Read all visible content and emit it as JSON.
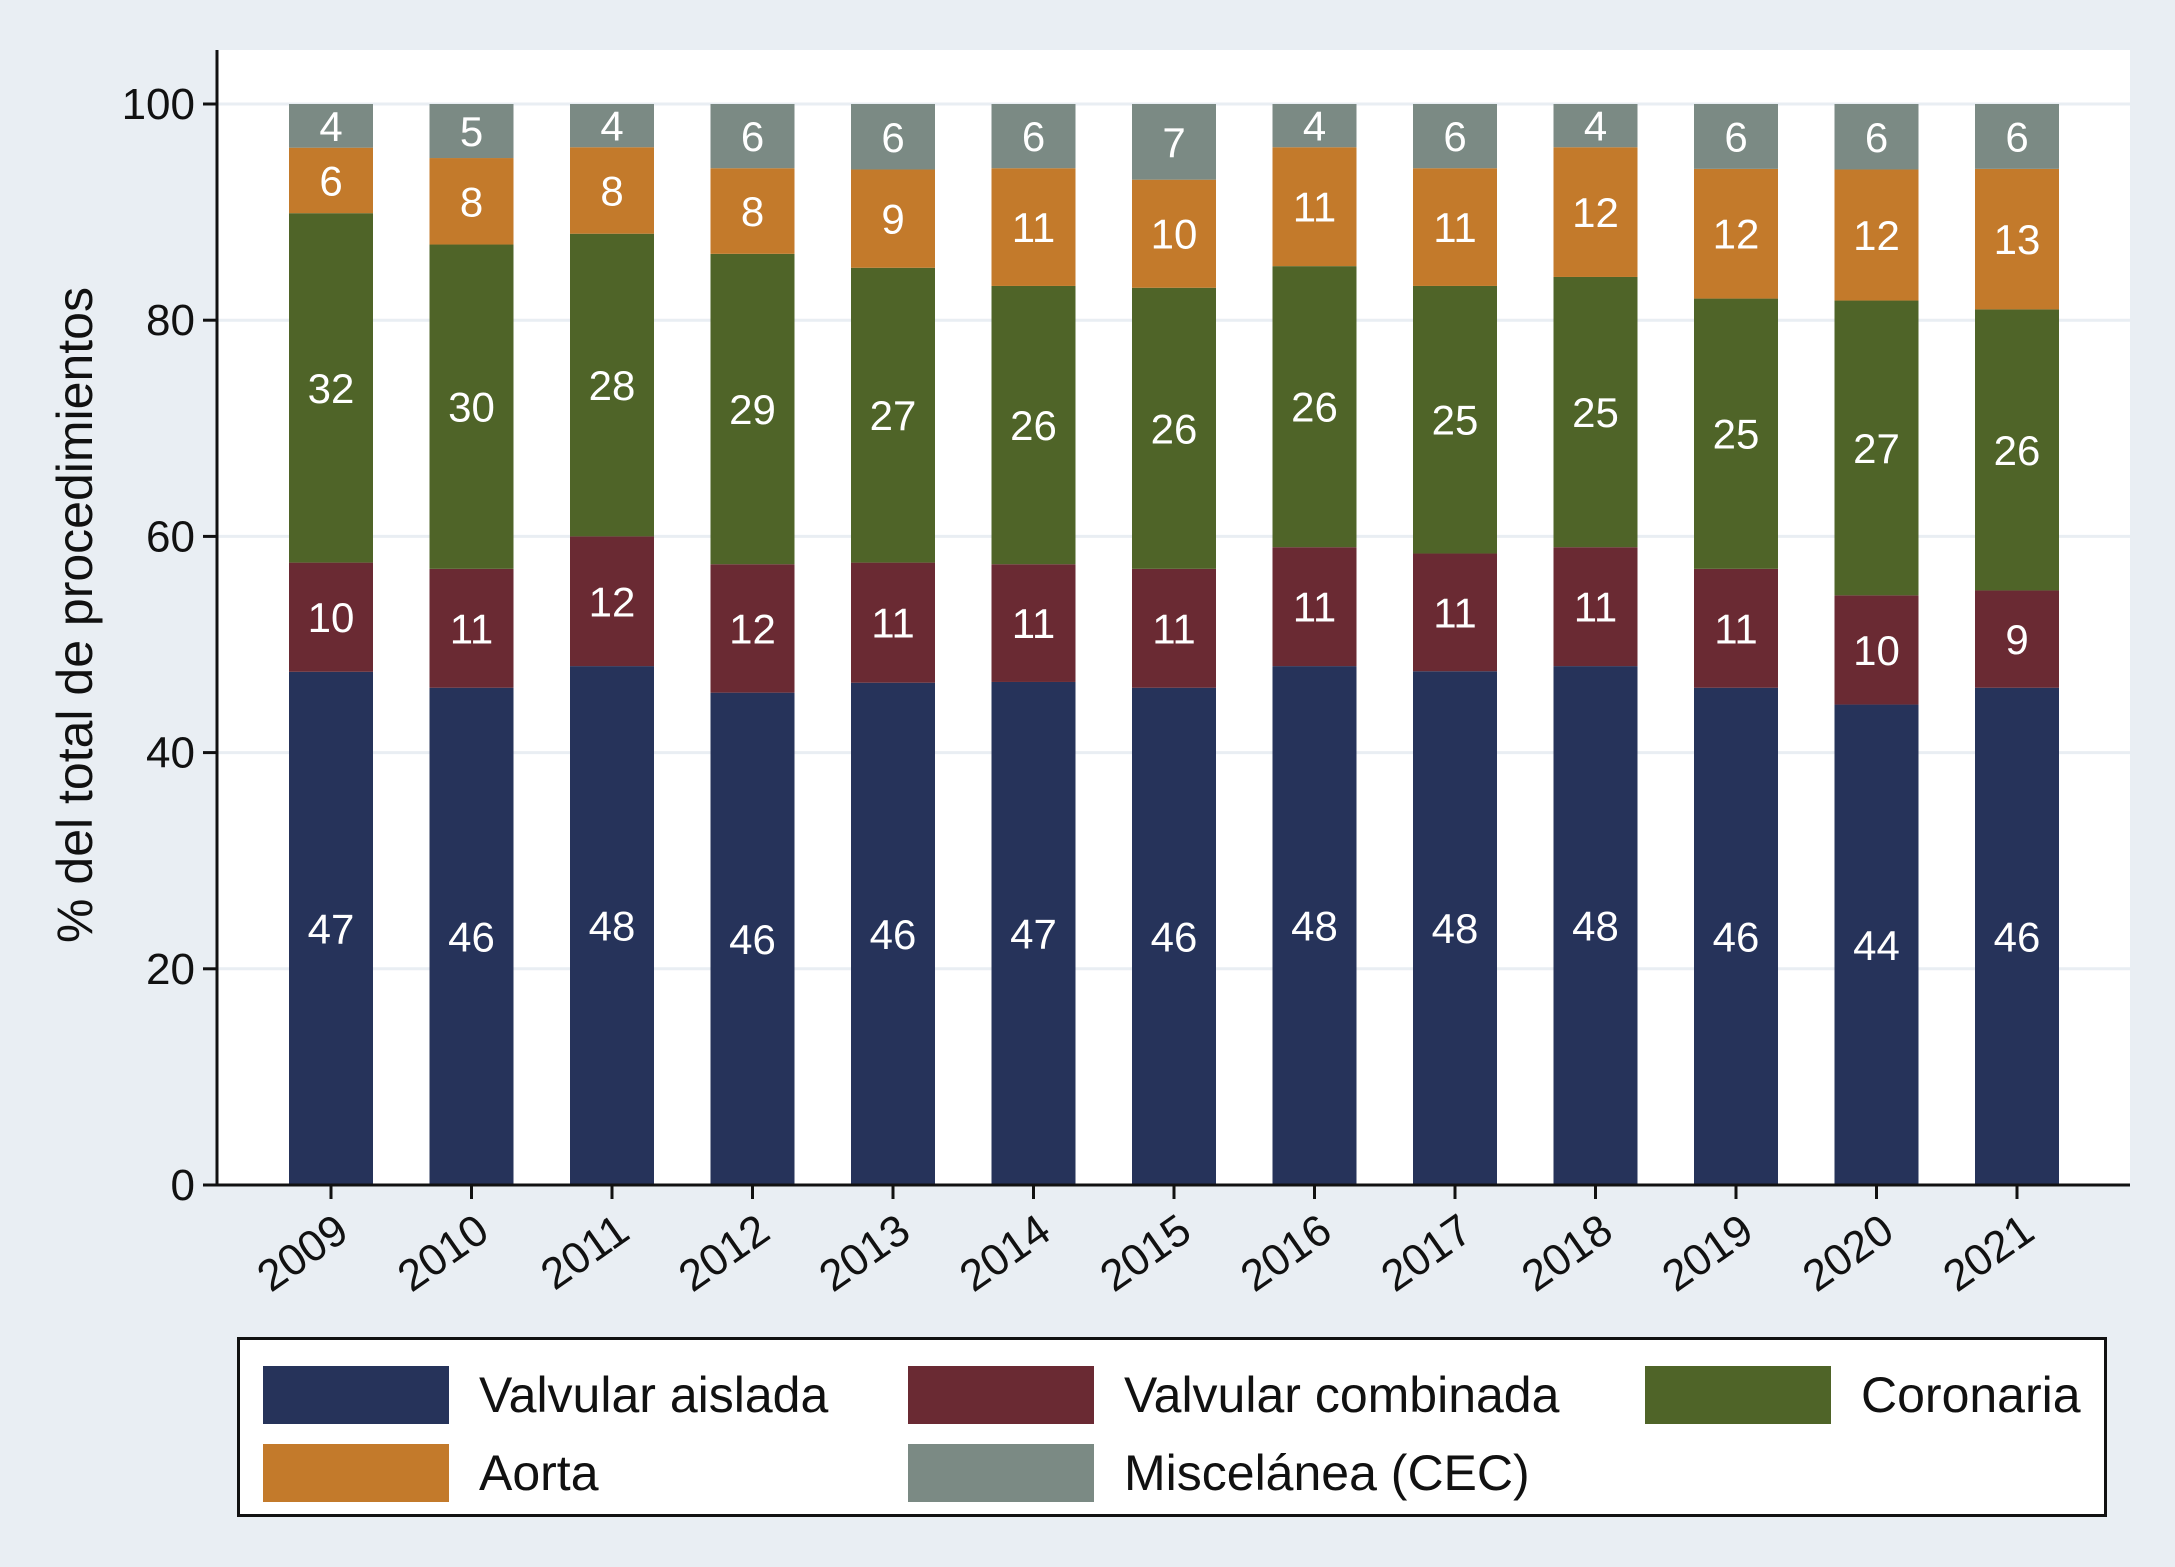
{
  "chart_data": {
    "type": "bar",
    "stacked": true,
    "categories": [
      "2009",
      "2010",
      "2011",
      "2012",
      "2013",
      "2014",
      "2015",
      "2016",
      "2017",
      "2018",
      "2019",
      "2020",
      "2021"
    ],
    "series": [
      {
        "name": "Valvular aislada",
        "color": "#26335a",
        "values": [
          47,
          46,
          48,
          46,
          46,
          47,
          46,
          48,
          48,
          48,
          46,
          44,
          46
        ]
      },
      {
        "name": "Valvular combinada",
        "color": "#6a2a33",
        "values": [
          10,
          11,
          12,
          12,
          11,
          11,
          11,
          11,
          11,
          11,
          11,
          10,
          9
        ]
      },
      {
        "name": "Coronaria",
        "color": "#4f6428",
        "values": [
          32,
          30,
          28,
          29,
          27,
          26,
          26,
          26,
          25,
          25,
          25,
          27,
          26
        ]
      },
      {
        "name": "Aorta",
        "color": "#c37a2b",
        "values": [
          6,
          8,
          8,
          8,
          9,
          11,
          10,
          11,
          11,
          12,
          12,
          12,
          13
        ]
      },
      {
        "name": "Miscelánea (CEC)",
        "color": "#7b8a84",
        "values": [
          4,
          5,
          4,
          6,
          6,
          6,
          7,
          4,
          6,
          4,
          6,
          6,
          6
        ]
      }
    ],
    "ylabel": "% del total de procedimientos",
    "xlabel": "",
    "ylim": [
      0,
      105
    ],
    "yticks": [
      0,
      20,
      40,
      60,
      80,
      100
    ],
    "grid": true,
    "legend_position": "bottom"
  },
  "colors": {
    "background": "#e9eef3",
    "plot_background": "#ffffff",
    "gridline": "#e9eef3"
  }
}
